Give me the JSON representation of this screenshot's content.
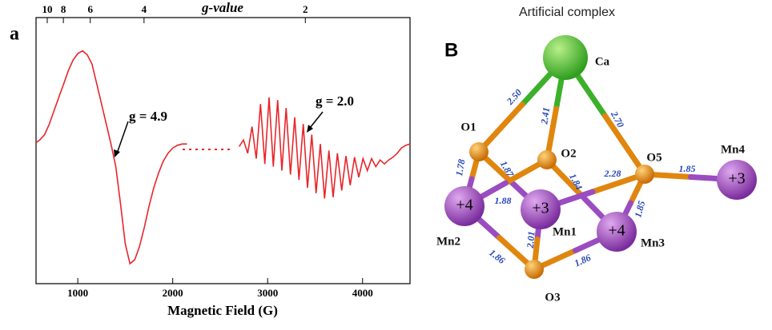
{
  "panel_a_label": "a",
  "chart_data": {
    "type": "line",
    "xlabel": "Magnetic Field (G)",
    "x2label": "g-value",
    "x": [
      560,
      600,
      650,
      700,
      750,
      800,
      850,
      900,
      950,
      1000,
      1050,
      1100,
      1150,
      1200,
      1250,
      1300,
      1350,
      1400,
      1450,
      1500,
      1550,
      1600,
      1650,
      1700,
      1750,
      1800,
      1850,
      1900,
      1950,
      2000,
      2050,
      2100,
      2150,
      2400,
      2700,
      2745,
      2790,
      2835,
      2880,
      2925,
      2970,
      3015,
      3060,
      3105,
      3150,
      3195,
      3240,
      3285,
      3330,
      3375,
      3420,
      3465,
      3510,
      3555,
      3600,
      3645,
      3690,
      3735,
      3780,
      3825,
      3870,
      3915,
      3960,
      4005,
      4050,
      4095,
      4140,
      4185,
      4230,
      4275,
      4320,
      4365,
      4410,
      4455,
      4500
    ],
    "series": [
      {
        "color": "#e8262a",
        "values": [
          0.06,
          0.08,
          0.12,
          0.2,
          0.3,
          0.4,
          0.5,
          0.6,
          0.68,
          0.73,
          0.75,
          0.72,
          0.65,
          0.5,
          0.35,
          0.2,
          0.05,
          -0.12,
          -0.4,
          -0.7,
          -0.85,
          -0.82,
          -0.72,
          -0.58,
          -0.42,
          -0.28,
          -0.17,
          -0.08,
          -0.02,
          0.02,
          0.04,
          0.05,
          0.05,
          null,
          0.03,
          0.08,
          -0.02,
          0.18,
          -0.06,
          0.35,
          -0.1,
          0.4,
          -0.12,
          0.38,
          -0.15,
          0.32,
          -0.18,
          0.25,
          -0.22,
          0.2,
          -0.28,
          0.12,
          -0.32,
          0.05,
          -0.36,
          0.0,
          -0.35,
          -0.02,
          -0.3,
          -0.04,
          -0.26,
          -0.05,
          -0.2,
          -0.06,
          -0.15,
          -0.06,
          -0.12,
          -0.07,
          -0.1,
          -0.07,
          -0.05,
          -0.02,
          0.02,
          0.04,
          0.05
        ]
      }
    ],
    "xlim": [
      560,
      4500
    ],
    "xticks": [
      1000,
      2000,
      3000,
      4000
    ],
    "x2lim": [
      12.1,
      1.51
    ],
    "x2_scale": "inverse",
    "x2ticks": [
      10,
      8,
      6,
      4,
      2
    ],
    "ylim": [
      -1,
      1
    ],
    "annotations": [
      {
        "text": "g = 4.9",
        "x": 1384
      },
      {
        "text": "g = 2.0",
        "x": 3400
      }
    ]
  },
  "diagram": {
    "title": "Artificial complex",
    "panel_label": "B",
    "nodes": [
      {
        "label": "Ca"
      },
      {
        "label": "O1"
      },
      {
        "label": "O2"
      },
      {
        "label": "O5"
      },
      {
        "label": "Mn4",
        "charge": "+3"
      },
      {
        "label": "Mn2",
        "charge": "+4"
      },
      {
        "label": "Mn1",
        "charge": "+3"
      },
      {
        "label": "Mn3",
        "charge": "+4"
      },
      {
        "label": "O3"
      }
    ],
    "bonds": [
      {
        "label": "2.50"
      },
      {
        "label": "2.41"
      },
      {
        "label": "2.70"
      },
      {
        "label": "1.78"
      },
      {
        "label": "1.87"
      },
      {
        "label": "1.88"
      },
      {
        "label": "1.84"
      },
      {
        "label": "2.28"
      },
      {
        "label": "1.85"
      },
      {
        "label": "1.85"
      },
      {
        "label": "2.01"
      },
      {
        "label": "1.86"
      },
      {
        "label": "1.86"
      }
    ]
  }
}
